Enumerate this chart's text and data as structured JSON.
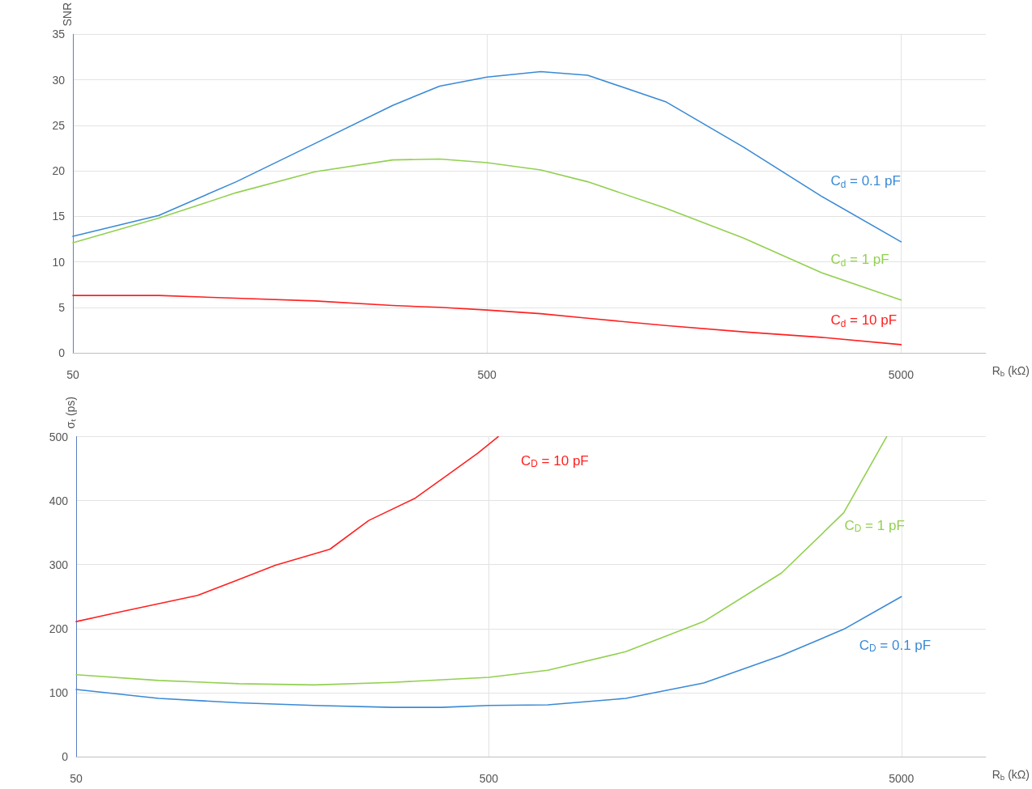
{
  "chart_data": [
    {
      "type": "line",
      "ylabel": "SNR",
      "xlabel": "R$_{b}$ (kΩ)",
      "log": "x",
      "xlim": [
        50,
        8000
      ],
      "xticks": [
        50,
        500,
        5000
      ],
      "ylim": [
        0,
        35
      ],
      "yticks": [
        0,
        5,
        10,
        15,
        20,
        25,
        30,
        35
      ],
      "grid": true,
      "legend": false,
      "marker": "none",
      "x": [
        50,
        80.6,
        124,
        192,
        296,
        384,
        500,
        674,
        875,
        1350,
        2083,
        3213,
        5000
      ],
      "series": [
        {
          "name": "C$_{d}$ = 0.1 pF",
          "color": "#3a8ad6",
          "values": [
            12.8,
            15.1,
            18.8,
            23,
            27.2,
            29.3,
            30.3,
            30.9,
            30.5,
            27.6,
            22.6,
            17.2,
            12.2
          ]
        },
        {
          "name": "C$_{d}$ = 1 pF",
          "color": "#92d050",
          "values": [
            12.1,
            14.8,
            17.6,
            19.9,
            21.2,
            21.3,
            20.9,
            20.1,
            18.8,
            15.9,
            12.6,
            8.8,
            5.8
          ]
        },
        {
          "name": "C$_{d}$ = 10 pF",
          "color": "#ff2020",
          "values": [
            6.3,
            6.3,
            6.0,
            5.7,
            5.2,
            5.0,
            4.7,
            4.3,
            3.8,
            3.0,
            2.3,
            1.7,
            0.9
          ]
        }
      ]
    },
    {
      "type": "line",
      "ylabel": "σₜ (ps)",
      "xlabel": "R$_{b}$ (kΩ)",
      "log": "x",
      "xlim": [
        50,
        8000
      ],
      "xticks": [
        50,
        500,
        5000
      ],
      "ylim": [
        0,
        500
      ],
      "yticks": [
        0,
        100,
        200,
        300,
        400,
        500
      ],
      "grid": true,
      "legend": false,
      "marker": "none",
      "series": [
        {
          "name": "C$_{D}$ = 10 pF",
          "color": "#ff2020",
          "x": [
            50,
            63.8,
            98.5,
            122,
            152,
            206,
            256,
            332,
            395,
            470,
            527
          ],
          "values": [
            211,
            226,
            252,
            275,
            299,
            324,
            369,
            404,
            439,
            474,
            500
          ]
        },
        {
          "name": "C$_{D}$ = 1 pF",
          "color": "#92d050",
          "x": [
            50,
            79.2,
            124,
            189,
            292,
            500,
            695,
            1074,
            1659,
            2562,
            3624,
            4604
          ],
          "values": [
            128,
            119,
            114,
            112,
            116,
            124,
            135,
            164,
            211,
            287,
            381,
            500
          ]
        },
        {
          "name": "C$_{D}$ = 0.1 pF",
          "color": "#3a8ad6",
          "x": [
            50,
            79.2,
            124,
            189,
            292,
            384,
            500,
            695,
            1074,
            1659,
            2562,
            3624,
            5000
          ],
          "values": [
            105,
            91,
            84,
            80,
            77,
            77,
            80,
            81,
            91,
            115,
            158,
            199,
            250
          ]
        }
      ]
    }
  ]
}
